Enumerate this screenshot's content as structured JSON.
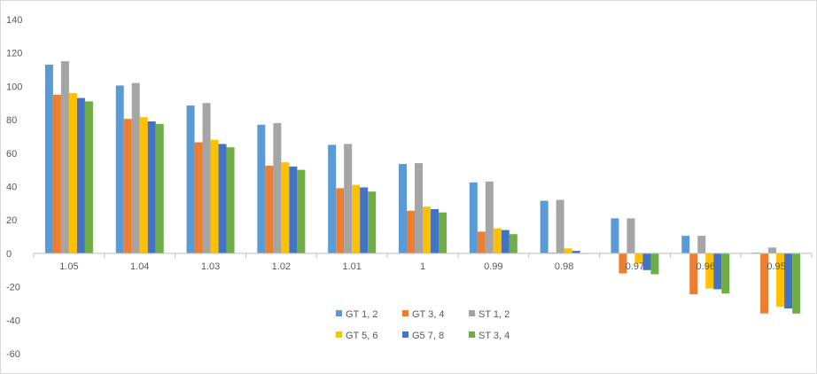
{
  "chart_data": {
    "type": "bar",
    "categories": [
      "1.05",
      "1.04",
      "1.03",
      "1.02",
      "1.01",
      "1",
      "0.99",
      "0.98",
      "0.97",
      "0.96",
      "0.95"
    ],
    "ylim": [
      -60,
      140
    ],
    "ytick_step": 20,
    "grid": false,
    "legend_position": "bottom-center",
    "series": [
      {
        "name": "GT 1, 2",
        "color": "#5B9BD5",
        "values": [
          113,
          100.5,
          88.5,
          77,
          65,
          53.5,
          42.5,
          31.5,
          21,
          10.5,
          0.5
        ]
      },
      {
        "name": "GT 3, 4",
        "color": "#ED7D31",
        "values": [
          95,
          80.5,
          66.5,
          52.5,
          39,
          25.5,
          13,
          0.5,
          -12,
          -24.5,
          -36
        ]
      },
      {
        "name": "ST 1, 2",
        "color": "#A5A5A5",
        "values": [
          115,
          102,
          90,
          78,
          65.5,
          54,
          43,
          32,
          21,
          10.5,
          3.5
        ]
      },
      {
        "name": "GT 5, 6",
        "color": "#FFC000",
        "values": [
          96,
          81.5,
          68,
          54.5,
          41,
          28,
          15,
          3,
          -6,
          -21,
          -32
        ]
      },
      {
        "name": "G5 7, 8",
        "color": "#4472C4",
        "values": [
          93,
          79,
          65.5,
          52,
          39.5,
          26.5,
          14,
          1.5,
          -10,
          -21.5,
          -33
        ]
      },
      {
        "name": "ST 3, 4",
        "color": "#70AD47",
        "values": [
          91,
          77.5,
          63.5,
          50,
          37,
          24.5,
          11.5,
          0,
          -12.5,
          -24,
          -36
        ]
      }
    ]
  }
}
